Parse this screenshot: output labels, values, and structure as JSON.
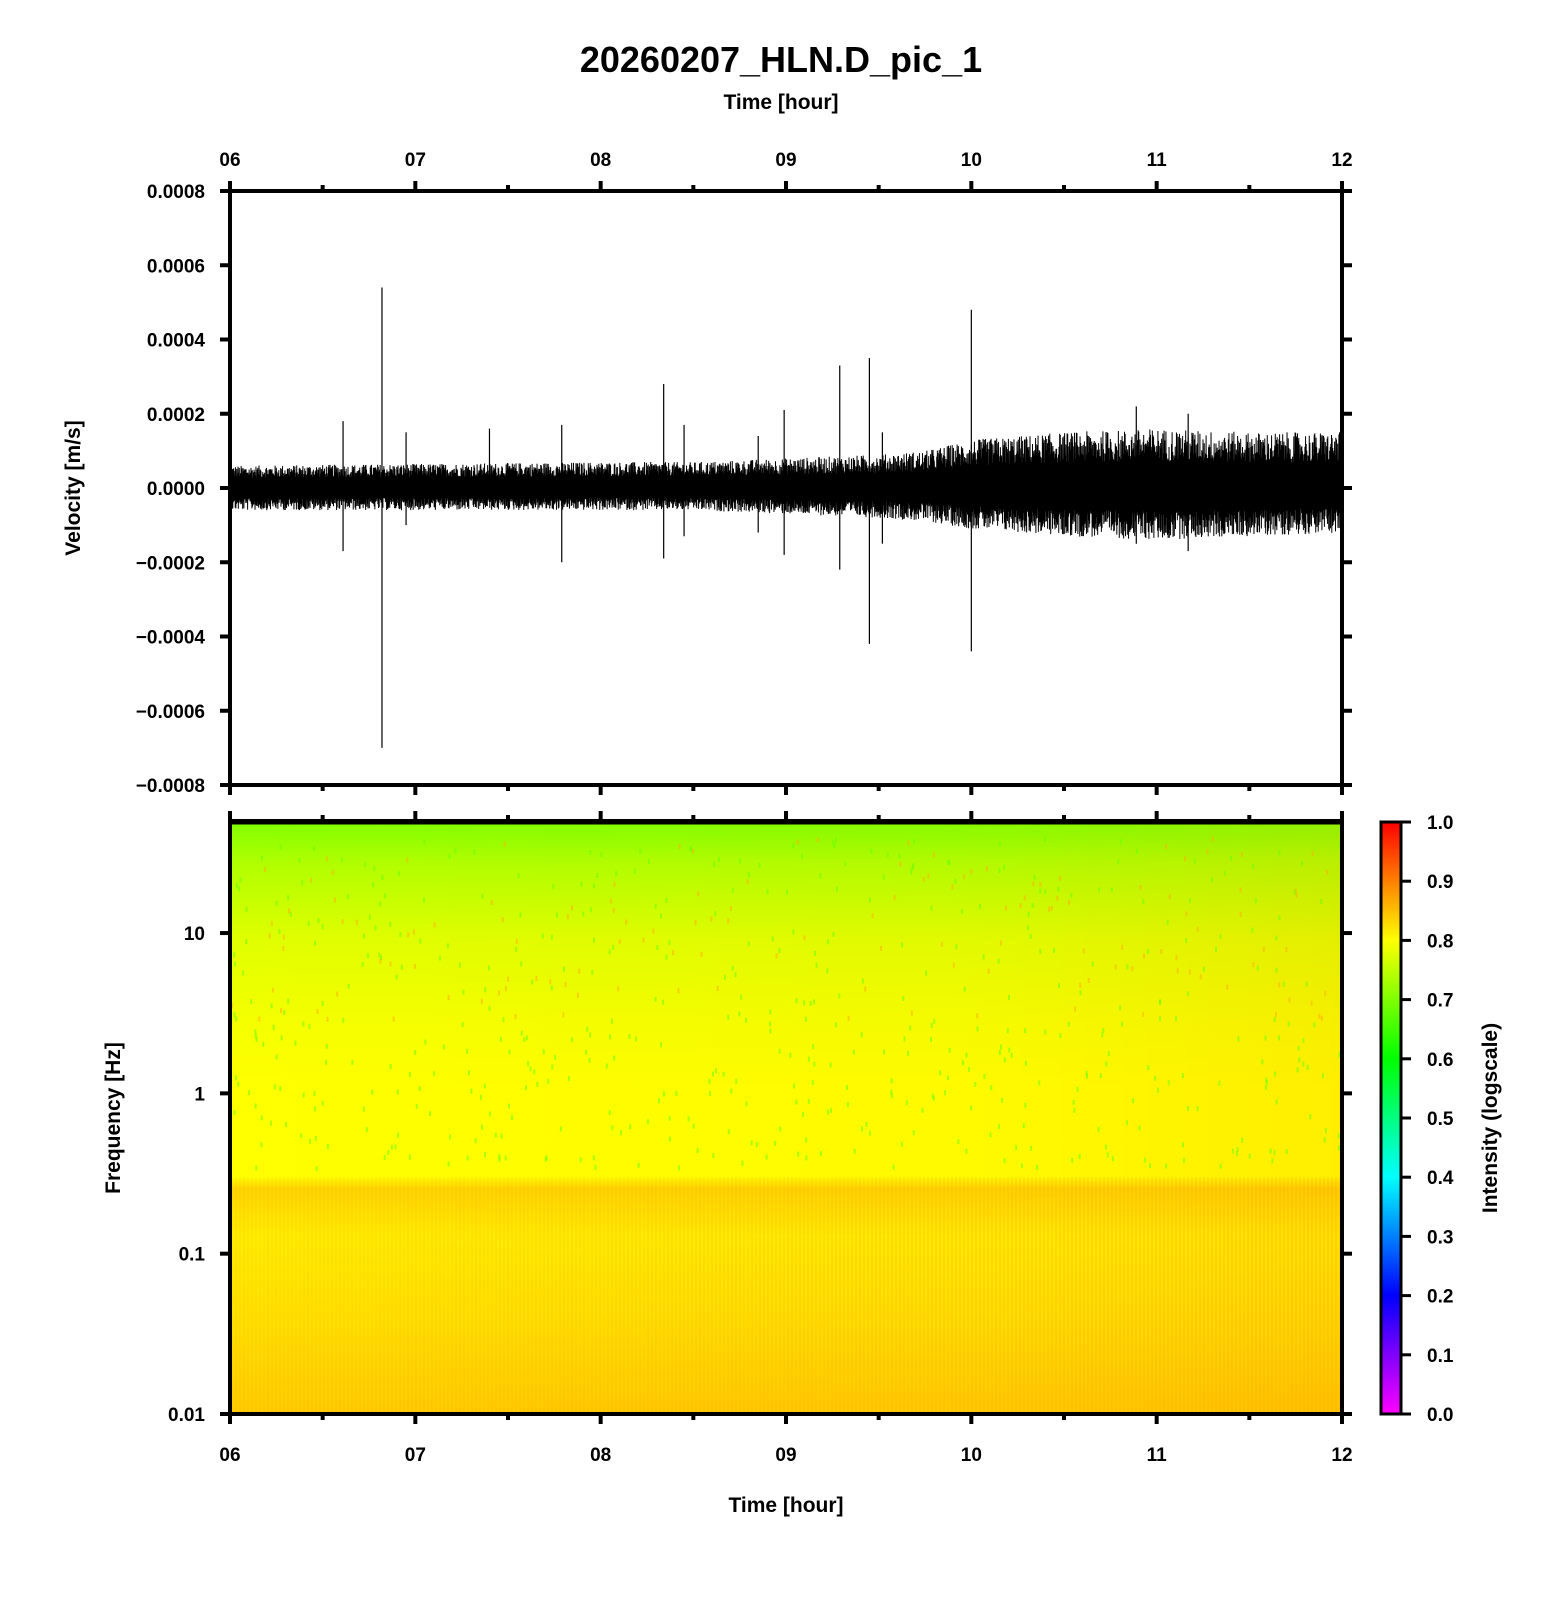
{
  "chart_data": [
    {
      "type": "line",
      "title": "20260207_HLN.D_pic_1",
      "xlabel": "Time [hour]",
      "ylabel": "Velocity [m/s]",
      "xlim": [
        6,
        12
      ],
      "ylim": [
        -0.0008,
        0.0008
      ],
      "x_ticks": [
        "06",
        "07",
        "08",
        "09",
        "10",
        "11",
        "12"
      ],
      "y_ticks": [
        "0.0008",
        "0.0006",
        "0.0004",
        "0.0002",
        "0.0000",
        "−0.0002",
        "−0.0004",
        "−0.0006",
        "−0.0008"
      ],
      "y_tick_values": [
        0.0008,
        0.0006,
        0.0004,
        0.0002,
        0.0,
        -0.0002,
        -0.0004,
        -0.0006,
        -0.0008
      ],
      "line_color": "#000000",
      "envelope": {
        "x": [
          6.0,
          7.0,
          8.0,
          8.5,
          9.0,
          9.5,
          9.75,
          10.0,
          10.5,
          11.0,
          11.5,
          12.0
        ],
        "y_max": [
          6e-05,
          6.5e-05,
          7e-05,
          7e-05,
          8e-05,
          9e-05,
          0.0001,
          0.00013,
          0.00015,
          0.00016,
          0.00015,
          0.00015
        ],
        "y_min": [
          -6e-05,
          -6e-05,
          -6e-05,
          -6e-05,
          -7e-05,
          -8e-05,
          -9e-05,
          -0.00011,
          -0.00013,
          -0.00014,
          -0.00013,
          -0.00012
        ]
      },
      "spikes": [
        {
          "x": 6.61,
          "max": 0.00018,
          "min": -0.00017
        },
        {
          "x": 6.82,
          "max": 0.00054,
          "min": -0.0007
        },
        {
          "x": 6.95,
          "max": 0.00015,
          "min": -0.0001
        },
        {
          "x": 7.4,
          "max": 0.00016,
          "min": -3e-05
        },
        {
          "x": 7.79,
          "max": 0.00017,
          "min": -0.0002
        },
        {
          "x": 8.34,
          "max": 0.00028,
          "min": -0.00019
        },
        {
          "x": 8.45,
          "max": 0.00017,
          "min": -0.00013
        },
        {
          "x": 8.85,
          "max": 0.00014,
          "min": -0.00012
        },
        {
          "x": 8.99,
          "max": 0.00021,
          "min": -0.00018
        },
        {
          "x": 9.29,
          "max": 0.00033,
          "min": -0.00022
        },
        {
          "x": 9.45,
          "max": 0.00035,
          "min": -0.00042
        },
        {
          "x": 9.52,
          "max": 0.00015,
          "min": -0.00015
        },
        {
          "x": 10.0,
          "max": 0.00048,
          "min": -0.00044
        },
        {
          "x": 10.89,
          "max": 0.00022,
          "min": -0.00015
        },
        {
          "x": 11.17,
          "max": 0.0002,
          "min": -0.00017
        }
      ]
    },
    {
      "type": "heatmap",
      "xlabel": "Time [hour]",
      "ylabel": "Frequency [Hz]",
      "xlim": [
        6,
        12
      ],
      "ylim": [
        0.01,
        50
      ],
      "y_scale": "log",
      "x_ticks": [
        "06",
        "07",
        "08",
        "09",
        "10",
        "11",
        "12"
      ],
      "y_ticks": [
        "10",
        "1",
        "0.1",
        "0.01"
      ],
      "y_tick_values": [
        10,
        1,
        0.1,
        0.01
      ],
      "colorbar": {
        "label": "Intensity (logscale)",
        "range": [
          0.0,
          1.0
        ],
        "ticks": [
          "1.0",
          "0.9",
          "0.8",
          "0.7",
          "0.6",
          "0.5",
          "0.4",
          "0.3",
          "0.2",
          "0.1",
          "0.0"
        ],
        "colors": [
          "#ff00ff",
          "#8000ff",
          "#0000ff",
          "#0080ff",
          "#00ffff",
          "#00ff80",
          "#00ff00",
          "#80ff00",
          "#ffff00",
          "#ff8000",
          "#ff0000"
        ]
      },
      "intensity_profile": {
        "frequency": [
          50,
          20,
          10,
          3,
          1,
          0.4,
          0.3,
          0.1,
          0.01
        ],
        "intensity": [
          0.66,
          0.7,
          0.74,
          0.77,
          0.79,
          0.79,
          0.82,
          0.81,
          0.83
        ]
      }
    }
  ]
}
